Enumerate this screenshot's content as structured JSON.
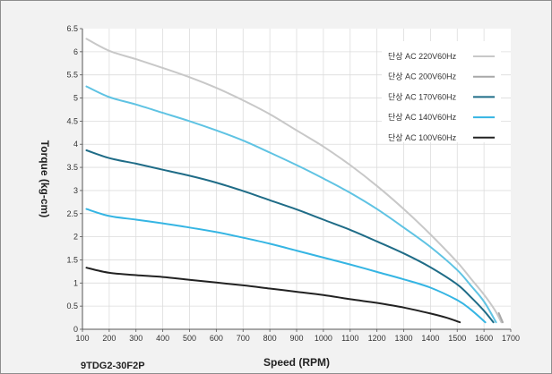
{
  "model_label": "9TDG2-30F2P",
  "chart_data": {
    "type": "line",
    "title": "",
    "xlabel": "Speed (RPM)",
    "ylabel": "Torque (kg-cm)",
    "xlim": [
      100,
      1700
    ],
    "ylim": [
      0,
      6.5
    ],
    "xticks": [
      100,
      200,
      300,
      400,
      500,
      600,
      700,
      800,
      900,
      1000,
      1100,
      1200,
      1300,
      1400,
      1500,
      1600,
      1700
    ],
    "yticks": [
      0,
      0.5,
      1,
      1.5,
      2,
      2.5,
      3,
      3.5,
      4,
      4.5,
      5,
      5.5,
      6,
      6.5
    ],
    "grid": true,
    "legend_position": "top-right",
    "series": [
      {
        "name": "단상 AC 220V60Hz",
        "color": "#c8c8c8",
        "x": [
          115,
          200,
          300,
          400,
          500,
          600,
          700,
          800,
          900,
          1000,
          1100,
          1200,
          1300,
          1400,
          1500,
          1550,
          1600,
          1640,
          1665
        ],
        "y": [
          6.28,
          6.02,
          5.84,
          5.65,
          5.45,
          5.22,
          4.95,
          4.65,
          4.3,
          3.95,
          3.55,
          3.1,
          2.6,
          2.05,
          1.45,
          1.1,
          0.75,
          0.42,
          0.15
        ]
      },
      {
        "name": "단상 AC 200V60Hz",
        "color": "#a8a8a8",
        "x": [
          1655,
          1670
        ],
        "y": [
          0.35,
          0.15
        ]
      },
      {
        "name": "단상 AC 170V60Hz",
        "color": "#1f6c87",
        "x": [
          115,
          200,
          300,
          400,
          500,
          600,
          700,
          800,
          900,
          1000,
          1100,
          1200,
          1300,
          1400,
          1500,
          1550,
          1600,
          1635
        ],
        "y": [
          3.87,
          3.7,
          3.58,
          3.45,
          3.32,
          3.17,
          2.99,
          2.79,
          2.59,
          2.37,
          2.15,
          1.9,
          1.64,
          1.34,
          0.97,
          0.7,
          0.4,
          0.15
        ]
      },
      {
        "name": "단상 AC 140V60Hz",
        "color": "#35b5e3",
        "x": [
          115,
          200,
          300,
          400,
          500,
          600,
          700,
          800,
          900,
          1000,
          1100,
          1200,
          1300,
          1400,
          1500,
          1550,
          1605
        ],
        "y": [
          2.6,
          2.45,
          2.37,
          2.29,
          2.2,
          2.1,
          1.98,
          1.85,
          1.7,
          1.55,
          1.4,
          1.24,
          1.08,
          0.9,
          0.63,
          0.43,
          0.15
        ]
      },
      {
        "name": "단상 AC 100V60Hz",
        "color": "#222222",
        "x": [
          115,
          200,
          300,
          400,
          500,
          600,
          700,
          800,
          900,
          1000,
          1100,
          1200,
          1300,
          1400,
          1460,
          1510
        ],
        "y": [
          1.33,
          1.22,
          1.17,
          1.13,
          1.07,
          1.01,
          0.95,
          0.88,
          0.81,
          0.74,
          0.65,
          0.57,
          0.47,
          0.34,
          0.25,
          0.15
        ]
      }
    ],
    "extra_curves": [
      {
        "color": "#5fc3e3",
        "x": [
          115,
          200,
          300,
          400,
          500,
          600,
          700,
          800,
          900,
          1000,
          1100,
          1200,
          1300,
          1400,
          1500,
          1550,
          1600,
          1645
        ],
        "y": [
          5.25,
          5.02,
          4.86,
          4.68,
          4.5,
          4.3,
          4.08,
          3.82,
          3.55,
          3.26,
          2.95,
          2.6,
          2.2,
          1.78,
          1.28,
          0.95,
          0.6,
          0.15
        ]
      }
    ]
  }
}
